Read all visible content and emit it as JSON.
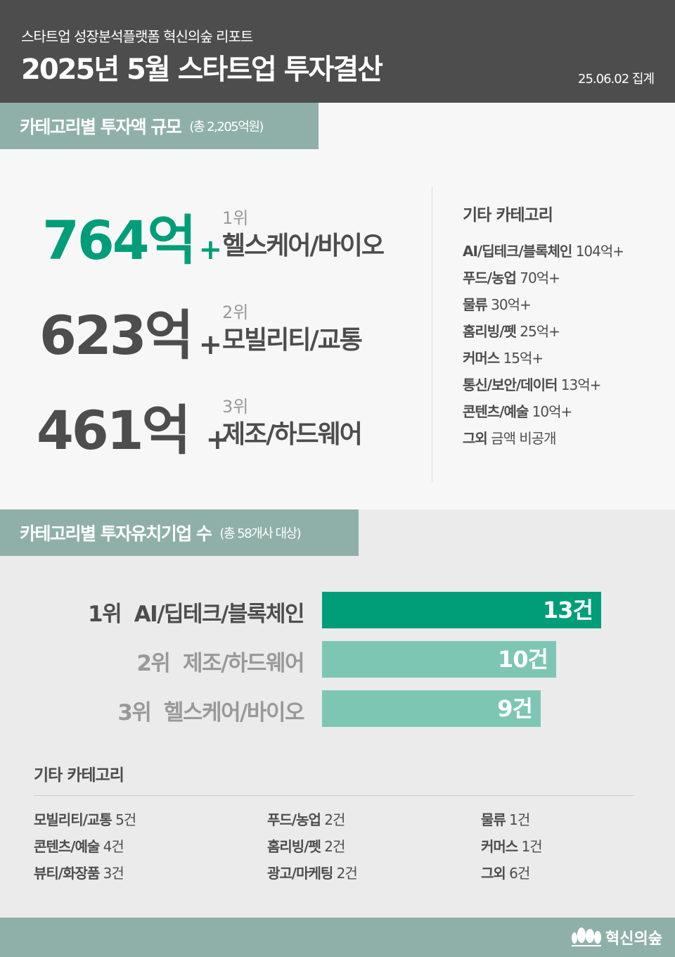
{
  "header": {
    "subtitle": "스타트업 성장분석플랫폼 혁신의숲 리포트",
    "title": "2025년 5월 스타트업 투자결산",
    "date": "25.06.02 집계"
  },
  "amount_section": {
    "label": "카테고리별 투자액 규모",
    "total": "(총 2,205억원)",
    "top": [
      {
        "value": "764억",
        "plus": "+",
        "rank": "1위",
        "category": "헬스케어/바이오",
        "color": "#009e78"
      },
      {
        "value": "623억",
        "plus": "+",
        "rank": "2위",
        "category": "모빌리티/교통",
        "color": "#4d4d4d"
      },
      {
        "value": "461억",
        "plus": "+",
        "rank": "3위",
        "category": "제조/하드웨어",
        "color": "#4d4d4d"
      }
    ],
    "other_title": "기타 카테고리",
    "others": [
      {
        "name": "AI/딥테크/블록체인",
        "value": "104억+"
      },
      {
        "name": "푸드/농업",
        "value": "70억+"
      },
      {
        "name": "물류",
        "value": "30억+"
      },
      {
        "name": "홈리빙/펫",
        "value": "25억+"
      },
      {
        "name": "커머스",
        "value": "15억+"
      },
      {
        "name": "통신/보안/데이터",
        "value": "13억+"
      },
      {
        "name": "콘텐츠/예술",
        "value": "10억+"
      },
      {
        "name": "그외",
        "value": "금액 비공개"
      }
    ]
  },
  "count_section": {
    "label": "카테고리별 투자유치기업 수",
    "total": "(총 58개사 대상)",
    "top": [
      {
        "rank": "1위",
        "category": "AI/딥테크/블록체인",
        "count": 13,
        "count_label": "13건",
        "color": "#009e78",
        "label_color": "#4d4d4d"
      },
      {
        "rank": "2위",
        "category": "제조/하드웨어",
        "count": 10,
        "count_label": "10건",
        "color": "#7dc6b4",
        "label_color": "#999999"
      },
      {
        "rank": "3위",
        "category": "헬스케어/바이오",
        "count": 9,
        "count_label": "9건",
        "color": "#7dc6b4",
        "label_color": "#999999"
      }
    ],
    "other_title": "기타 카테고리",
    "others": [
      {
        "name": "모빌리티/교통",
        "value": "5건"
      },
      {
        "name": "푸드/농업",
        "value": "2건"
      },
      {
        "name": "물류",
        "value": "1건"
      },
      {
        "name": "콘텐츠/예술",
        "value": "4건"
      },
      {
        "name": "홈리빙/펫",
        "value": "2건"
      },
      {
        "name": "커머스",
        "value": "1건"
      },
      {
        "name": "뷰티/화장품",
        "value": "3건"
      },
      {
        "name": "광고/마케팅",
        "value": "2건"
      },
      {
        "name": "그외",
        "value": "6건"
      }
    ]
  },
  "footer": {
    "logo_text": "혁신의숲"
  }
}
